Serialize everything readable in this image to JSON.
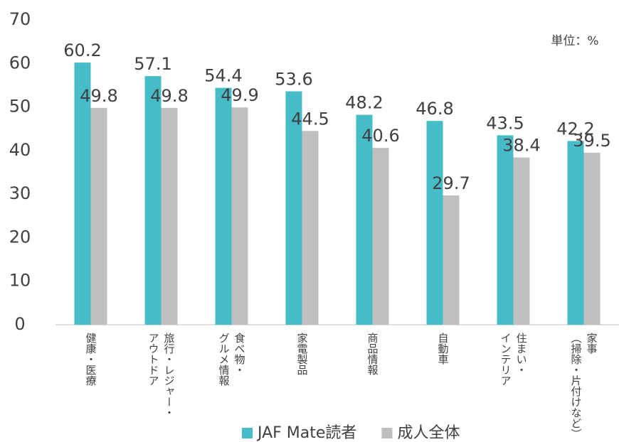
{
  "chart_data": {
    "type": "bar",
    "unit_note": "単位：%",
    "categories": [
      "健康・医療",
      "旅行・レジャー・\nアウトドア",
      "食べ物・\nグルメ情報",
      "家電製品",
      "商品情報",
      "自動車",
      "住まい・\nインテリア",
      "家事\n（掃除・片付けなど）"
    ],
    "series": [
      {
        "name": "JAF Mate読者",
        "color": "#45bcc8",
        "values": [
          60.2,
          57.1,
          54.4,
          53.6,
          48.2,
          46.8,
          43.5,
          42.2
        ]
      },
      {
        "name": "成人全体",
        "color": "#bfbfbf",
        "values": [
          49.8,
          49.8,
          49.9,
          44.5,
          40.6,
          29.7,
          38.4,
          39.5
        ]
      }
    ],
    "ylim": [
      0,
      70
    ],
    "yticks": [
      0,
      10,
      20,
      30,
      40,
      50,
      60,
      70
    ],
    "grid": false,
    "legend": "bottom"
  }
}
